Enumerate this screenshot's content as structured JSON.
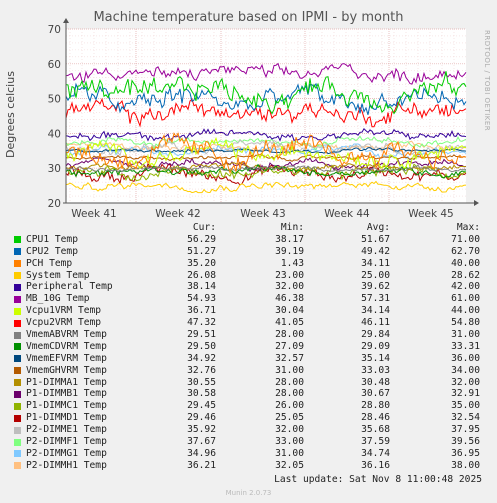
{
  "chart_data": {
    "type": "line",
    "title": "Machine temperature based on IPMI - by month",
    "ylabel": "Degrees celcius",
    "ylim": [
      20,
      70
    ],
    "yticks": [
      20,
      30,
      40,
      50,
      60,
      70
    ],
    "xticks": [
      "Week 41",
      "Week 42",
      "Week 43",
      "Week 44",
      "Week 45"
    ],
    "grid": true,
    "side_label": "RRDTOOL / TOBI OETIKER",
    "columns": [
      "Cur:",
      "Min:",
      "Avg:",
      "Max:"
    ],
    "series": [
      {
        "name": "CPU1 Temp",
        "color": "#00cc00",
        "values": [
          "56.29",
          "38.17",
          "51.67",
          "71.00"
        ]
      },
      {
        "name": "CPU2 Temp",
        "color": "#0066b3",
        "values": [
          "51.27",
          "39.19",
          "49.42",
          "62.70"
        ]
      },
      {
        "name": "PCH Temp",
        "color": "#ff8000",
        "values": [
          "35.20",
          "1.43",
          "34.11",
          "40.00"
        ]
      },
      {
        "name": "System Temp",
        "color": "#ffcc00",
        "values": [
          "26.08",
          "23.00",
          "25.00",
          "28.62"
        ]
      },
      {
        "name": "Peripheral Temp",
        "color": "#330099",
        "values": [
          "38.14",
          "32.00",
          "39.62",
          "42.00"
        ]
      },
      {
        "name": "MB_10G Temp",
        "color": "#990099",
        "values": [
          "54.93",
          "46.38",
          "57.31",
          "61.00"
        ]
      },
      {
        "name": "Vcpu1VRM Temp",
        "color": "#ccff00",
        "values": [
          "36.71",
          "30.04",
          "34.14",
          "44.00"
        ]
      },
      {
        "name": "Vcpu2VRM Temp",
        "color": "#ff0000",
        "values": [
          "47.32",
          "41.05",
          "46.11",
          "54.80"
        ]
      },
      {
        "name": "VmemABVRM Temp",
        "color": "#808080",
        "values": [
          "29.51",
          "28.00",
          "29.84",
          "31.00"
        ]
      },
      {
        "name": "VmemCDVRM Temp",
        "color": "#008f00",
        "values": [
          "29.50",
          "27.09",
          "29.09",
          "33.31"
        ]
      },
      {
        "name": "VmemEFVRM Temp",
        "color": "#00487d",
        "values": [
          "34.92",
          "32.57",
          "35.14",
          "36.00"
        ]
      },
      {
        "name": "VmemGHVRM Temp",
        "color": "#b35a00",
        "values": [
          "32.76",
          "31.00",
          "33.03",
          "34.00"
        ]
      },
      {
        "name": "P1-DIMMA1 Temp",
        "color": "#b38f00",
        "values": [
          "30.55",
          "28.00",
          "30.48",
          "32.00"
        ]
      },
      {
        "name": "P1-DIMMB1 Temp",
        "color": "#6b006b",
        "values": [
          "30.58",
          "28.00",
          "30.67",
          "32.91"
        ]
      },
      {
        "name": "P1-DIMMC1 Temp",
        "color": "#8fb300",
        "values": [
          "29.45",
          "26.00",
          "28.80",
          "35.00"
        ]
      },
      {
        "name": "P1-DIMMD1 Temp",
        "color": "#b30000",
        "values": [
          "29.46",
          "25.05",
          "28.46",
          "32.54"
        ]
      },
      {
        "name": "P2-DIMME1 Temp",
        "color": "#bebebe",
        "values": [
          "35.92",
          "32.00",
          "35.68",
          "37.95"
        ]
      },
      {
        "name": "P2-DIMMF1 Temp",
        "color": "#80ff80",
        "values": [
          "37.67",
          "33.00",
          "37.59",
          "39.56"
        ]
      },
      {
        "name": "P2-DIMMG1 Temp",
        "color": "#80c9ff",
        "values": [
          "34.96",
          "31.00",
          "34.74",
          "36.95"
        ]
      },
      {
        "name": "P2-DIMMH1 Temp",
        "color": "#ffc080",
        "values": [
          "36.21",
          "32.05",
          "36.16",
          "38.00"
        ]
      }
    ],
    "last_update": "Last update: Sat Nov  8 11:00:48 2025",
    "footer": "Munin 2.0.73"
  }
}
